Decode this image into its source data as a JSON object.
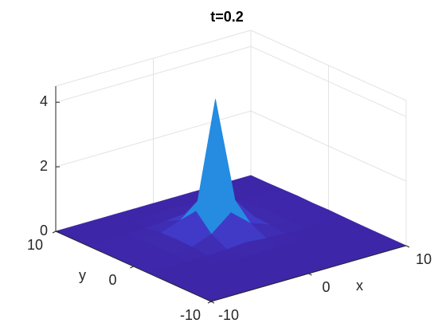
{
  "chart_data": {
    "type": "surface",
    "title": "t=0.2",
    "xlabel": "x",
    "ylabel": "y",
    "x": [
      -10,
      -8,
      -6,
      -4,
      -2,
      0,
      2,
      4,
      6,
      8,
      10
    ],
    "y": [
      -10,
      -8,
      -6,
      -4,
      -2,
      0,
      2,
      4,
      6,
      8,
      10
    ],
    "z": [
      [
        0,
        0,
        0,
        0,
        0,
        0,
        0,
        0,
        0,
        0,
        0
      ],
      [
        0,
        0,
        0,
        0,
        0,
        0,
        0,
        0,
        0,
        0,
        0
      ],
      [
        0,
        0,
        0,
        0,
        0,
        0,
        0,
        0,
        0,
        0,
        0
      ],
      [
        0,
        0,
        0,
        0,
        0.01,
        0.02,
        0.01,
        0,
        0,
        0,
        0
      ],
      [
        0.01,
        0.01,
        0.01,
        0.02,
        0.05,
        0.1,
        0.05,
        0.02,
        0.01,
        0.01,
        0.01
      ],
      [
        0.02,
        0.02,
        0.02,
        0.08,
        0.3,
        0.8,
        0.3,
        0.08,
        0.02,
        0.02,
        0.02
      ],
      [
        0.01,
        0.01,
        0.03,
        0.1,
        0.8,
        4.1,
        0.8,
        0.1,
        0.03,
        0.01,
        0.01
      ],
      [
        0.02,
        0.02,
        0.02,
        0.08,
        0.3,
        0.8,
        0.3,
        0.08,
        0.02,
        0.02,
        0.02
      ],
      [
        0.01,
        0.01,
        0.01,
        0.02,
        0.05,
        0.1,
        0.05,
        0.02,
        0.01,
        0.01,
        0.01
      ],
      [
        0,
        0,
        0,
        0,
        0.01,
        0.02,
        0.01,
        0,
        0,
        0,
        0
      ],
      [
        0,
        0,
        0,
        0,
        0,
        0,
        0,
        0,
        0,
        0,
        0
      ]
    ],
    "xlim": [
      -10,
      10
    ],
    "ylim": [
      -10,
      10
    ],
    "zlim": [
      0,
      4.5
    ],
    "xticks": [
      -10,
      0,
      10
    ],
    "yticks": [
      -10,
      0,
      10
    ],
    "zticks": [
      0,
      2,
      4
    ],
    "grid": true,
    "colormap": "parula"
  }
}
